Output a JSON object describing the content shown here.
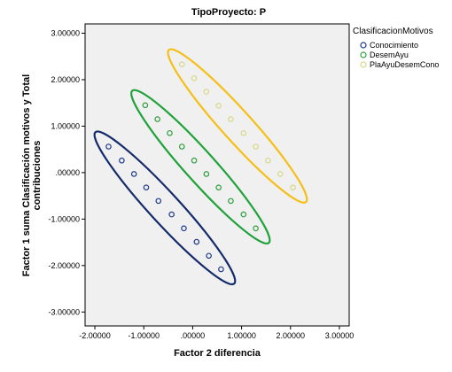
{
  "chart_data": {
    "type": "scatter",
    "title": "TipoProyecto: P",
    "xlabel": "Factor 2 diferencia",
    "ylabel_lines": [
      "Factor 1 suma Clasificación motivos y Total",
      "contribuciones"
    ],
    "xlim": [
      -2.2,
      3.2
    ],
    "ylim": [
      -3.3,
      3.2
    ],
    "x_ticks": [
      -2,
      -1,
      0,
      1,
      2,
      3
    ],
    "x_tick_labels": [
      "-2.00000",
      "-1.00000",
      ".00000",
      "1.00000",
      "2.00000",
      "3.00000"
    ],
    "y_ticks": [
      3,
      2,
      1,
      0,
      -1,
      -2,
      -3
    ],
    "y_tick_labels": [
      "3.00000",
      "2.00000",
      "1.00000",
      ".00000",
      "-1.00000",
      "-2.00000",
      "-3.00000"
    ],
    "grid": false,
    "legend": {
      "title": "ClasificacionMotivos",
      "placement": "right-outside-top"
    },
    "series": [
      {
        "name": "Conocimiento",
        "color": "#1f3a8a",
        "ellipse_color": "#142b6b",
        "points": [
          {
            "x": -1.72,
            "y": 0.56
          },
          {
            "x": -1.45,
            "y": 0.26
          },
          {
            "x": -1.2,
            "y": -0.03
          },
          {
            "x": -0.95,
            "y": -0.32
          },
          {
            "x": -0.7,
            "y": -0.61
          },
          {
            "x": -0.43,
            "y": -0.9
          },
          {
            "x": -0.18,
            "y": -1.2
          },
          {
            "x": 0.08,
            "y": -1.49
          },
          {
            "x": 0.33,
            "y": -1.79
          },
          {
            "x": 0.58,
            "y": -2.08
          }
        ]
      },
      {
        "name": "DesemAyu",
        "color": "#2e9e3e",
        "ellipse_color": "#1fa23a",
        "points": [
          {
            "x": -0.97,
            "y": 1.45
          },
          {
            "x": -0.72,
            "y": 1.15
          },
          {
            "x": -0.47,
            "y": 0.85
          },
          {
            "x": -0.22,
            "y": 0.56
          },
          {
            "x": 0.03,
            "y": 0.26
          },
          {
            "x": 0.28,
            "y": -0.03
          },
          {
            "x": 0.53,
            "y": -0.32
          },
          {
            "x": 0.78,
            "y": -0.61
          },
          {
            "x": 1.04,
            "y": -0.9
          },
          {
            "x": 1.29,
            "y": -1.2
          }
        ]
      },
      {
        "name": "PlaAyuDesemCono",
        "color": "#d8d889",
        "ellipse_color": "#f5bf18",
        "points": [
          {
            "x": -0.22,
            "y": 2.33
          },
          {
            "x": 0.03,
            "y": 2.03
          },
          {
            "x": 0.28,
            "y": 1.74
          },
          {
            "x": 0.53,
            "y": 1.44
          },
          {
            "x": 0.78,
            "y": 1.15
          },
          {
            "x": 1.04,
            "y": 0.85
          },
          {
            "x": 1.29,
            "y": 0.56
          },
          {
            "x": 1.54,
            "y": 0.26
          },
          {
            "x": 1.79,
            "y": -0.03
          },
          {
            "x": 2.05,
            "y": -0.32
          }
        ]
      }
    ]
  }
}
